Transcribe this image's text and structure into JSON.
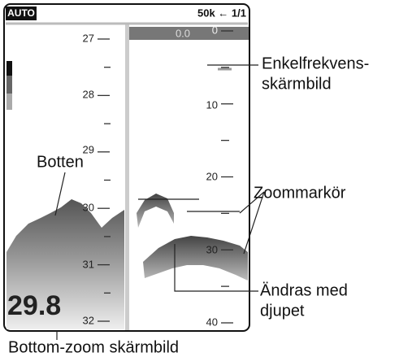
{
  "header": {
    "mode": "AUTO",
    "frequency_page": "50k ← 1/1"
  },
  "left_panel": {
    "scale": [
      "27",
      "28",
      "29",
      "30",
      "31",
      "32"
    ],
    "depth": "29.8"
  },
  "right_panel": {
    "offset": "0.0",
    "scale": [
      "0",
      "10",
      "20",
      "30",
      "40"
    ]
  },
  "callouts": {
    "single_frequency": [
      "Enkelfrekvens-",
      "skärmbild"
    ],
    "zoom_marker": "Zoommarkör",
    "changes_with_depth": [
      "Ändras med",
      "djupet"
    ],
    "bottom": "Botten",
    "bottom_zoom": "Bottom-zoom skärmbild"
  }
}
